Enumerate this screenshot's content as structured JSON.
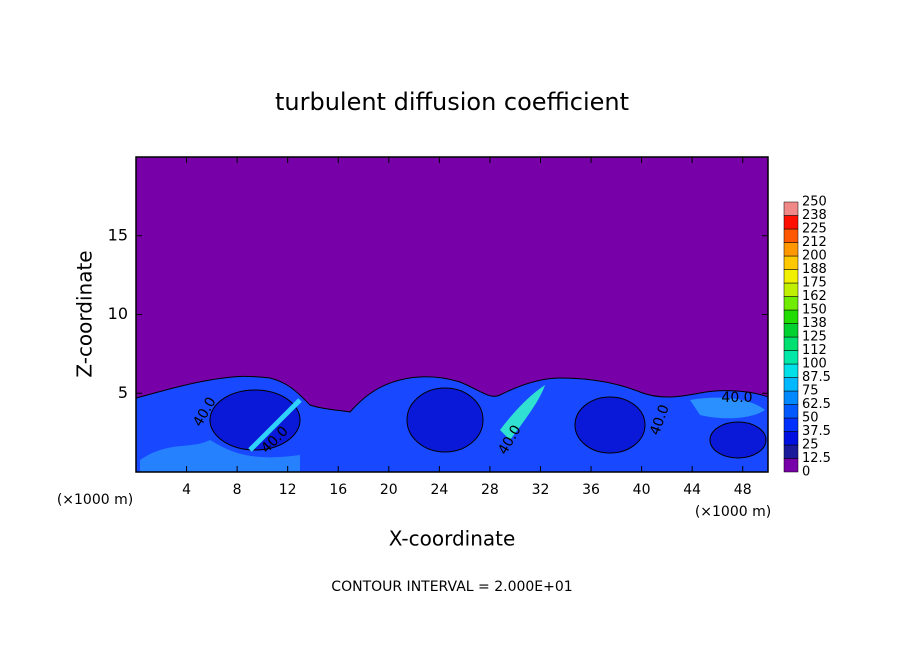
{
  "chart_data": {
    "type": "contour",
    "title": "turbulent diffusion coefficient",
    "x_label": "X-coordinate",
    "y_label": "Z-coordinate",
    "x_unit_left": "(×1000 m)",
    "x_unit_right": "(×1000 m)",
    "footer": "CONTOUR INTERVAL = 2.000E+01",
    "contour_labels": [
      "40.0",
      "40.0",
      "40.0",
      "40.0",
      "40.0"
    ],
    "xlim": [
      0,
      50
    ],
    "ylim": [
      0,
      20
    ],
    "xticks": [
      4,
      8,
      12,
      16,
      20,
      24,
      28,
      32,
      36,
      40,
      44,
      48
    ],
    "yticks": [
      5,
      10,
      15
    ],
    "colorbar": {
      "ticks": [
        0,
        12.5,
        25,
        37.5,
        50,
        62.5,
        75,
        87.5,
        100,
        112,
        125,
        138,
        150,
        162,
        175,
        188,
        200,
        212,
        225,
        238,
        250
      ],
      "colors": [
        "#7800a8",
        "#1a1a9a",
        "#0010e0",
        "#0030ff",
        "#0058ff",
        "#0088ff",
        "#00b8ff",
        "#00e0e8",
        "#00e8a8",
        "#00e070",
        "#00d030",
        "#20dc00",
        "#70ec00",
        "#c0f000",
        "#f0f000",
        "#ffc800",
        "#ff9800",
        "#ff5800",
        "#ff1000",
        "#f08888"
      ]
    }
  }
}
